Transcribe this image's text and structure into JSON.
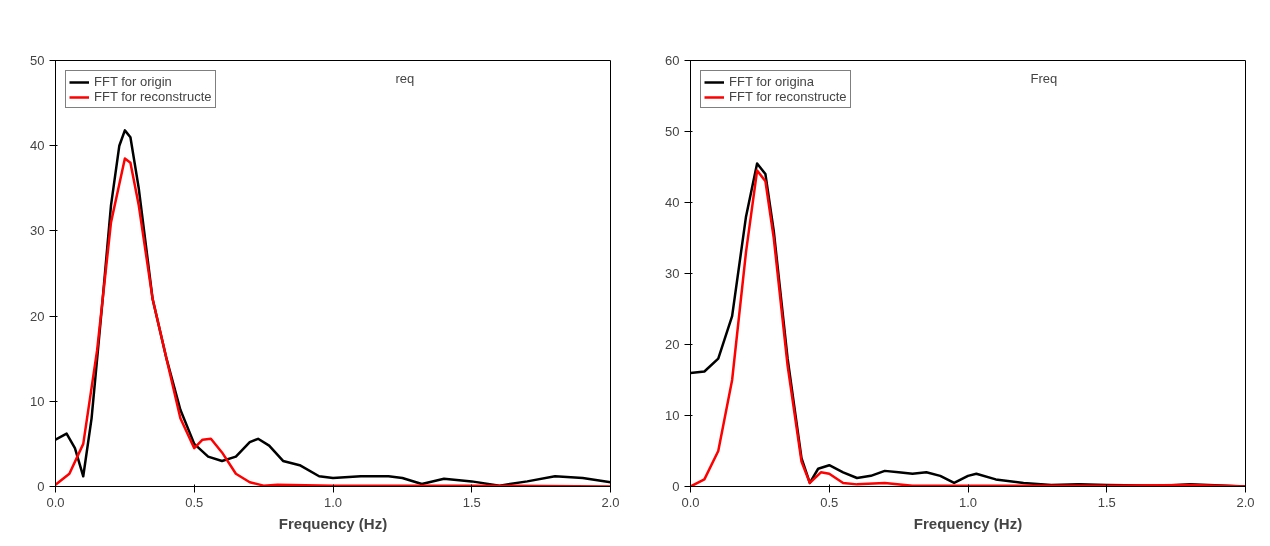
{
  "chart_data": [
    {
      "type": "line",
      "xlabel": "Frequency (Hz)",
      "xlim": [
        0,
        2
      ],
      "ylim": [
        0,
        50
      ],
      "xticks": [
        {
          "value": 0,
          "label": "0.0"
        },
        {
          "value": 0.5,
          "label": "0.5"
        },
        {
          "value": 1,
          "label": "1.0"
        },
        {
          "value": 1.5,
          "label": "1.5"
        },
        {
          "value": 2,
          "label": "2.0"
        }
      ],
      "yticks": [
        0,
        10,
        20,
        30,
        40,
        50
      ],
      "grid": false,
      "legend": "top left",
      "marker": "none",
      "line_style": "solid",
      "annotations": [
        "req"
      ],
      "series": [
        {
          "name": "FFT for origin",
          "color": "#000000",
          "x": [
            0,
            0.04,
            0.07,
            0.1,
            0.13,
            0.17,
            0.2,
            0.23,
            0.25,
            0.27,
            0.3,
            0.35,
            0.4,
            0.45,
            0.5,
            0.55,
            0.6,
            0.65,
            0.7,
            0.73,
            0.77,
            0.82,
            0.88,
            0.95,
            1.0,
            1.1,
            1.2,
            1.25,
            1.32,
            1.4,
            1.5,
            1.6,
            1.7,
            1.8,
            1.9,
            2.0
          ],
          "values": [
            5.5,
            6.2,
            4.5,
            1.2,
            8,
            22,
            33,
            40,
            41.8,
            41,
            35,
            22,
            15,
            9,
            5,
            3.5,
            3,
            3.5,
            5.2,
            5.6,
            4.8,
            3,
            2.5,
            1.2,
            1,
            1.2,
            1.2,
            1,
            0.3,
            0.9,
            0.6,
            0.1,
            0.6,
            1.2,
            1,
            0.5
          ]
        },
        {
          "name": "FFT for reconstructe",
          "color": "#ff0000",
          "x": [
            0,
            0.05,
            0.1,
            0.15,
            0.2,
            0.25,
            0.27,
            0.3,
            0.35,
            0.4,
            0.45,
            0.5,
            0.53,
            0.56,
            0.6,
            0.65,
            0.7,
            0.75,
            0.8,
            1.0,
            1.5,
            2.0
          ],
          "values": [
            0.2,
            1.5,
            5,
            16,
            31,
            38.5,
            38,
            33,
            22,
            15,
            8,
            4.5,
            5.5,
            5.6,
            4,
            1.5,
            0.5,
            0.1,
            0.2,
            0.1,
            0.1,
            0
          ]
        }
      ]
    },
    {
      "type": "line",
      "xlabel": "Frequency (Hz)",
      "xlim": [
        0,
        2
      ],
      "ylim": [
        0,
        60
      ],
      "xticks": [
        {
          "value": 0,
          "label": "0.0"
        },
        {
          "value": 0.5,
          "label": "0.5"
        },
        {
          "value": 1,
          "label": "1.0"
        },
        {
          "value": 1.5,
          "label": "1.5"
        },
        {
          "value": 2,
          "label": "2.0"
        }
      ],
      "yticks": [
        0,
        10,
        20,
        30,
        40,
        50,
        60
      ],
      "grid": false,
      "legend": "top left",
      "marker": "none",
      "line_style": "solid",
      "annotations": [
        "Freq"
      ],
      "series": [
        {
          "name": "FFT for origina",
          "color": "#000000",
          "x": [
            0,
            0.05,
            0.1,
            0.15,
            0.2,
            0.24,
            0.27,
            0.3,
            0.35,
            0.4,
            0.43,
            0.46,
            0.5,
            0.55,
            0.6,
            0.65,
            0.7,
            0.75,
            0.8,
            0.85,
            0.9,
            0.95,
            1.0,
            1.03,
            1.1,
            1.2,
            1.3,
            1.4,
            1.5,
            1.7,
            1.8,
            2.0
          ],
          "values": [
            16,
            16.2,
            18,
            24,
            38,
            45.5,
            44,
            36,
            18,
            4,
            0.5,
            2.5,
            3,
            2,
            1.2,
            1.5,
            2.2,
            2,
            1.8,
            2,
            1.5,
            0.5,
            1.5,
            1.8,
            1,
            0.5,
            0.2,
            0.3,
            0.2,
            0.1,
            0.3,
            0
          ]
        },
        {
          "name": "FFT for reconstructe",
          "color": "#ff0000",
          "x": [
            0,
            0.05,
            0.1,
            0.15,
            0.2,
            0.24,
            0.27,
            0.3,
            0.35,
            0.4,
            0.43,
            0.47,
            0.5,
            0.55,
            0.6,
            0.7,
            0.8,
            1.0,
            1.5,
            1.8,
            2.0
          ],
          "values": [
            0,
            1,
            5,
            15,
            33,
            44.5,
            43,
            35,
            17,
            3.5,
            0.5,
            2,
            1.8,
            0.5,
            0.3,
            0.5,
            0.1,
            0.1,
            0.1,
            0.2,
            0
          ]
        }
      ]
    }
  ]
}
